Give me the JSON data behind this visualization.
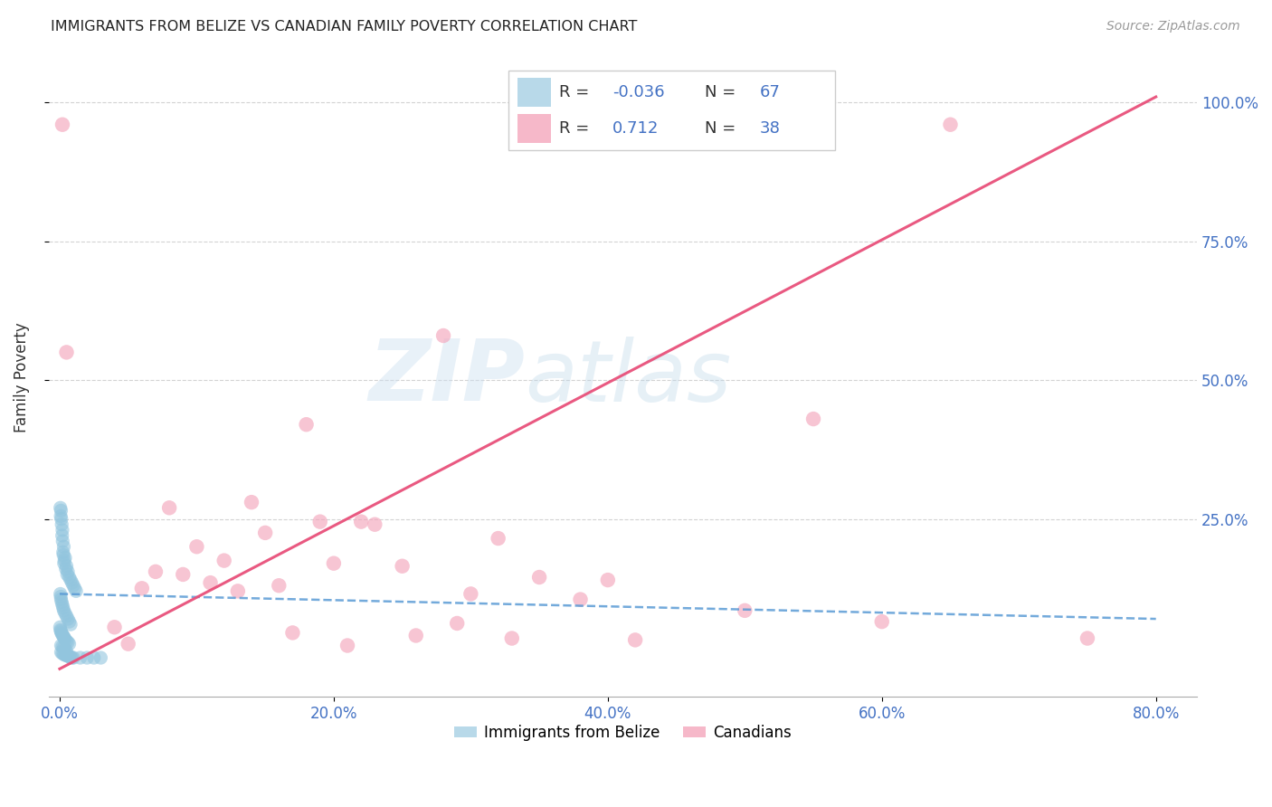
{
  "title": "IMMIGRANTS FROM BELIZE VS CANADIAN FAMILY POVERTY CORRELATION CHART",
  "source": "Source: ZipAtlas.com",
  "ylabel": "Family Poverty",
  "x_tick_labels": [
    "0.0%",
    "20.0%",
    "40.0%",
    "60.0%",
    "80.0%"
  ],
  "x_tick_values": [
    0.0,
    0.2,
    0.4,
    0.6,
    0.8
  ],
  "y_tick_labels": [
    "25.0%",
    "50.0%",
    "75.0%",
    "100.0%"
  ],
  "y_tick_values": [
    0.25,
    0.5,
    0.75,
    1.0
  ],
  "xlim": [
    -0.008,
    0.83
  ],
  "ylim": [
    -0.07,
    1.08
  ],
  "blue_color": "#92c5de",
  "pink_color": "#f4a6bc",
  "blue_line_color": "#5b9bd5",
  "pink_line_color": "#e8507a",
  "watermark_zip": "ZIP",
  "watermark_atlas": "atlas",
  "blue_scatter_x": [
    0.0005,
    0.001,
    0.0008,
    0.0012,
    0.0015,
    0.002,
    0.0018,
    0.0022,
    0.003,
    0.0025,
    0.0028,
    0.004,
    0.0035,
    0.0032,
    0.005,
    0.0045,
    0.006,
    0.0055,
    0.007,
    0.008,
    0.009,
    0.01,
    0.011,
    0.012,
    0.0005,
    0.0008,
    0.001,
    0.0015,
    0.002,
    0.0025,
    0.003,
    0.004,
    0.005,
    0.006,
    0.007,
    0.008,
    0.0003,
    0.0006,
    0.0009,
    0.0012,
    0.0018,
    0.0024,
    0.003,
    0.0035,
    0.004,
    0.005,
    0.006,
    0.007,
    0.001,
    0.002,
    0.003,
    0.004,
    0.005,
    0.001,
    0.002,
    0.003,
    0.004,
    0.005,
    0.006,
    0.007,
    0.008,
    0.009,
    0.01,
    0.015,
    0.02,
    0.025,
    0.03
  ],
  "blue_scatter_y": [
    0.27,
    0.265,
    0.255,
    0.25,
    0.24,
    0.23,
    0.22,
    0.21,
    0.2,
    0.19,
    0.185,
    0.18,
    0.175,
    0.17,
    0.165,
    0.16,
    0.155,
    0.15,
    0.145,
    0.14,
    0.135,
    0.13,
    0.125,
    0.12,
    0.115,
    0.11,
    0.105,
    0.1,
    0.095,
    0.09,
    0.085,
    0.08,
    0.075,
    0.07,
    0.065,
    0.06,
    0.055,
    0.05,
    0.048,
    0.045,
    0.042,
    0.04,
    0.038,
    0.035,
    0.033,
    0.03,
    0.028,
    0.025,
    0.022,
    0.02,
    0.018,
    0.015,
    0.012,
    0.01,
    0.008,
    0.006,
    0.005,
    0.004,
    0.003,
    0.002,
    0.001,
    0.0,
    0.0,
    0.0,
    0.0,
    0.0,
    0.0
  ],
  "pink_scatter_x": [
    0.002,
    0.28,
    0.005,
    0.18,
    0.14,
    0.08,
    0.22,
    0.15,
    0.32,
    0.1,
    0.12,
    0.2,
    0.25,
    0.07,
    0.09,
    0.35,
    0.4,
    0.11,
    0.16,
    0.19,
    0.23,
    0.06,
    0.13,
    0.3,
    0.38,
    0.5,
    0.6,
    0.65,
    0.04,
    0.17,
    0.26,
    0.33,
    0.42,
    0.55,
    0.05,
    0.21,
    0.29,
    0.75
  ],
  "pink_scatter_y": [
    0.96,
    0.58,
    0.55,
    0.42,
    0.28,
    0.27,
    0.245,
    0.225,
    0.215,
    0.2,
    0.175,
    0.17,
    0.165,
    0.155,
    0.15,
    0.145,
    0.14,
    0.135,
    0.13,
    0.245,
    0.24,
    0.125,
    0.12,
    0.115,
    0.105,
    0.085,
    0.065,
    0.96,
    0.055,
    0.045,
    0.04,
    0.035,
    0.032,
    0.43,
    0.025,
    0.022,
    0.062,
    0.035
  ],
  "blue_trend_x0": 0.0,
  "blue_trend_x1": 0.8,
  "blue_trend_y0": 0.115,
  "blue_trend_y1": 0.07,
  "pink_trend_x0": 0.0,
  "pink_trend_x1": 0.8,
  "pink_trend_y0": -0.02,
  "pink_trend_y1": 1.01
}
